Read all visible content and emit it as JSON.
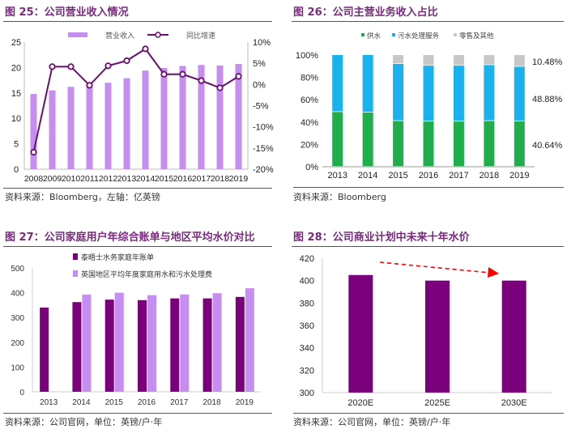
{
  "chart_data": [
    {
      "type": "bar+line",
      "title": "图 25：公司营业收入情况",
      "source": "资料来源：Bloomberg，左轴：亿英镑",
      "categories": [
        "2008",
        "2009",
        "2010",
        "2011",
        "2012",
        "2013",
        "2014",
        "2015",
        "2016",
        "2017",
        "2018",
        "2019"
      ],
      "series": [
        {
          "name": "营业收入",
          "axis": "left",
          "kind": "bar",
          "color": "#c58ef0",
          "values": [
            14.8,
            15.5,
            16.2,
            16.6,
            17.0,
            17.9,
            19.4,
            19.9,
            20.3,
            20.5,
            20.4,
            20.7
          ]
        },
        {
          "name": "同比增速",
          "axis": "right",
          "kind": "line",
          "color": "#6a0f6e",
          "values": [
            -16.0,
            4.2,
            4.2,
            -0.2,
            4.4,
            5.6,
            8.4,
            2.4,
            2.4,
            0.9,
            -0.8,
            1.9
          ]
        }
      ],
      "ylim_left": [
        0,
        25
      ],
      "yticks_left": [
        "0",
        "5",
        "10",
        "15",
        "20",
        "25"
      ],
      "ylim_right": [
        -20,
        10
      ],
      "yticks_right": [
        "-20%",
        "-15%",
        "-10%",
        "-5%",
        "0%",
        "5%",
        "10%"
      ],
      "legend": "top"
    },
    {
      "type": "stacked-bar",
      "title": "图 26：公司主营业务收入占比",
      "source": "资料来源：Bloomberg",
      "categories": [
        "2013",
        "2014",
        "2015",
        "2016",
        "2017",
        "2018",
        "2019"
      ],
      "series": [
        {
          "name": "供水",
          "color": "#1fae4b",
          "values": [
            49.0,
            48.5,
            41.0,
            40.5,
            40.5,
            41.0,
            40.64
          ]
        },
        {
          "name": "污水处理服务",
          "color": "#1ab2ee",
          "values": [
            51.0,
            51.5,
            51.0,
            50.0,
            50.0,
            50.0,
            48.88
          ]
        },
        {
          "name": "零售及其他",
          "color": "#c8c8c8",
          "values": [
            0,
            0,
            8.0,
            9.5,
            9.5,
            9.0,
            10.48
          ]
        }
      ],
      "annotations": [
        "10.48%",
        "48.88%",
        "40.64%"
      ],
      "ylim": [
        0,
        100
      ],
      "yticks": [
        "0%",
        "20%",
        "40%",
        "60%",
        "80%",
        "100%"
      ],
      "legend": "top"
    },
    {
      "type": "grouped-bar",
      "title": "图 27：公司家庭用户年综合账单与地区平均水价对比",
      "source": "资料来源：公司官网，单位：英镑/户·年",
      "categories": [
        "2013",
        "2014",
        "2015",
        "2016",
        "2017",
        "2018",
        "2019"
      ],
      "series": [
        {
          "name": "泰晤士水务家庭年账单",
          "color": "#7b007c",
          "values": [
            340,
            362,
            372,
            370,
            377,
            377,
            383
          ]
        },
        {
          "name": "英国地区平均年度家庭用水和污水处理费",
          "color": "#c58ef0",
          "values": [
            null,
            392,
            400,
            390,
            393,
            398,
            418
          ]
        }
      ],
      "ylim": [
        0,
        500
      ],
      "yticks": [
        "0",
        "100",
        "200",
        "300",
        "400",
        "500"
      ],
      "legend": "top-left"
    },
    {
      "type": "bar",
      "title": "图 28：公司商业计划中未来十年水价",
      "source": "资料来源：公司官网，单位：英镑/户·年",
      "categories": [
        "2020E",
        "2025E",
        "2030E"
      ],
      "values": [
        405,
        400,
        400
      ],
      "color": "#7b007c",
      "ylim": [
        300,
        420
      ],
      "yticks": [
        "300",
        "320",
        "340",
        "360",
        "380",
        "400",
        "420"
      ],
      "annotation": "red dashed downward arrow",
      "arrow_color": "#ff0000"
    }
  ]
}
